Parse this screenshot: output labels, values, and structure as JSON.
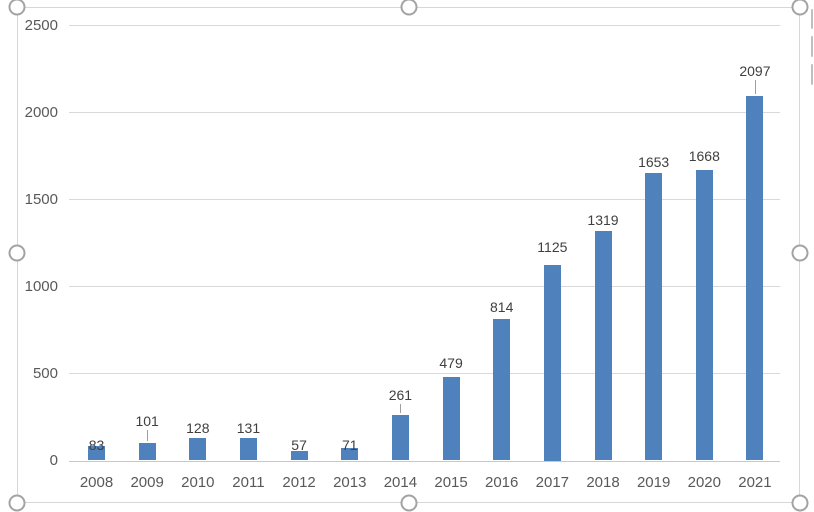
{
  "chart_data": {
    "type": "bar",
    "title": "",
    "xlabel": "",
    "ylabel": "",
    "categories": [
      "2008",
      "2009",
      "2010",
      "2011",
      "2012",
      "2013",
      "2014",
      "2015",
      "2016",
      "2017",
      "2018",
      "2019",
      "2020",
      "2021"
    ],
    "values": [
      83,
      101,
      128,
      131,
      57,
      71,
      261,
      479,
      814,
      1125,
      1319,
      1653,
      1668,
      2097
    ],
    "data_labels": [
      "83",
      "101",
      "128",
      "131",
      "57",
      "71",
      "261",
      "479",
      "814",
      "1125",
      "1319",
      "1653",
      "1668",
      "2097"
    ],
    "label_layout": [
      {
        "gap": -7,
        "leader": false
      },
      {
        "gap": 14,
        "leader": true
      },
      {
        "gap": 2,
        "leader": false
      },
      {
        "gap": 2,
        "leader": false
      },
      {
        "gap": -2,
        "leader": false
      },
      {
        "gap": -5,
        "leader": false
      },
      {
        "gap": 12,
        "leader": true
      },
      {
        "gap": 6,
        "leader": false
      },
      {
        "gap": 4,
        "leader": false
      },
      {
        "gap": 10,
        "leader": false
      },
      {
        "gap": 3,
        "leader": false
      },
      {
        "gap": 3,
        "leader": false
      },
      {
        "gap": 6,
        "leader": false
      },
      {
        "gap": 17,
        "leader": true
      }
    ],
    "yticks": [
      0,
      500,
      1000,
      1500,
      2000,
      2500
    ],
    "ylim": [
      0,
      2500
    ],
    "grid": true,
    "legend": "none"
  },
  "colors": {
    "bar": "#4f81bd",
    "gridline": "#d9d9d9",
    "axis_line": "#c8c8c8",
    "tick_text": "#595959",
    "data_label_text": "#3f3f3f",
    "chart_border": "#d7d7d7",
    "handle": "#a3a3a3",
    "side_button_edge": "#bfbfbf"
  },
  "selection": {
    "selected": true,
    "handle_count": 8,
    "side_buttons_cutoff": 3
  }
}
